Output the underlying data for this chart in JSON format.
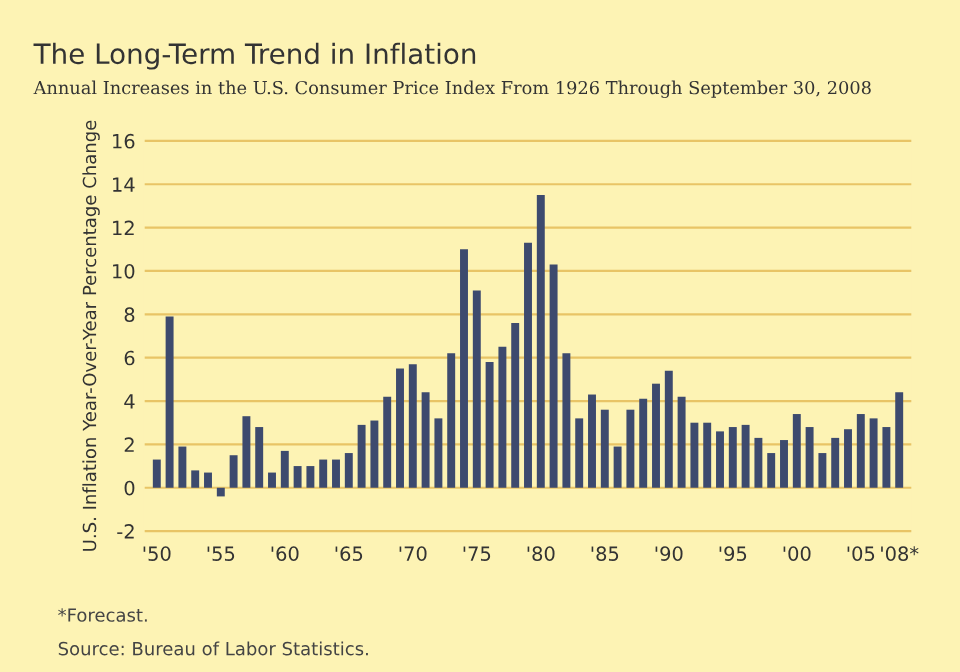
{
  "chart_data": {
    "type": "bar",
    "title": "The Long-Term Trend in Inflation",
    "subtitle": "Annual Increases in the U.S. Consumer Price Index From 1926 Through September 30, 2008",
    "ylabel": "U.S. Inflation Year-Over-Year Percentage Change",
    "categories": [
      "'50",
      null,
      null,
      null,
      null,
      "'55",
      null,
      null,
      null,
      null,
      "'60",
      null,
      null,
      null,
      null,
      "'65",
      null,
      null,
      null,
      null,
      "'70",
      null,
      null,
      null,
      null,
      "'75",
      null,
      null,
      null,
      null,
      "'80",
      null,
      null,
      null,
      null,
      "'85",
      null,
      null,
      null,
      null,
      "'90",
      null,
      null,
      null,
      null,
      "'95",
      null,
      null,
      null,
      null,
      "'00",
      null,
      null,
      null,
      null,
      "'05",
      null,
      null,
      "'08*"
    ],
    "values": [
      1.3,
      7.9,
      1.9,
      0.8,
      0.7,
      -0.4,
      1.5,
      3.3,
      2.8,
      0.7,
      1.7,
      1.0,
      1.0,
      1.3,
      1.3,
      1.6,
      2.9,
      3.1,
      4.2,
      5.5,
      5.7,
      4.4,
      3.2,
      6.2,
      11.0,
      9.1,
      5.8,
      6.5,
      7.6,
      11.3,
      13.5,
      10.3,
      6.2,
      3.2,
      4.3,
      3.6,
      1.9,
      3.6,
      4.1,
      4.8,
      5.4,
      4.2,
      3.0,
      3.0,
      2.6,
      2.8,
      2.9,
      2.3,
      1.6,
      2.2,
      3.4,
      2.8,
      1.6,
      2.3,
      2.7,
      3.4,
      3.2,
      2.8,
      4.4
    ],
    "color": "#3d4a6e",
    "ylim": [
      -2.3,
      16.3
    ],
    "yticks": [
      -2,
      0,
      2,
      4,
      6,
      8,
      10,
      12,
      14,
      16
    ],
    "grid": "y",
    "annotations": [
      "*Forecast.",
      "Source: Bureau of Labor Statistics."
    ]
  }
}
